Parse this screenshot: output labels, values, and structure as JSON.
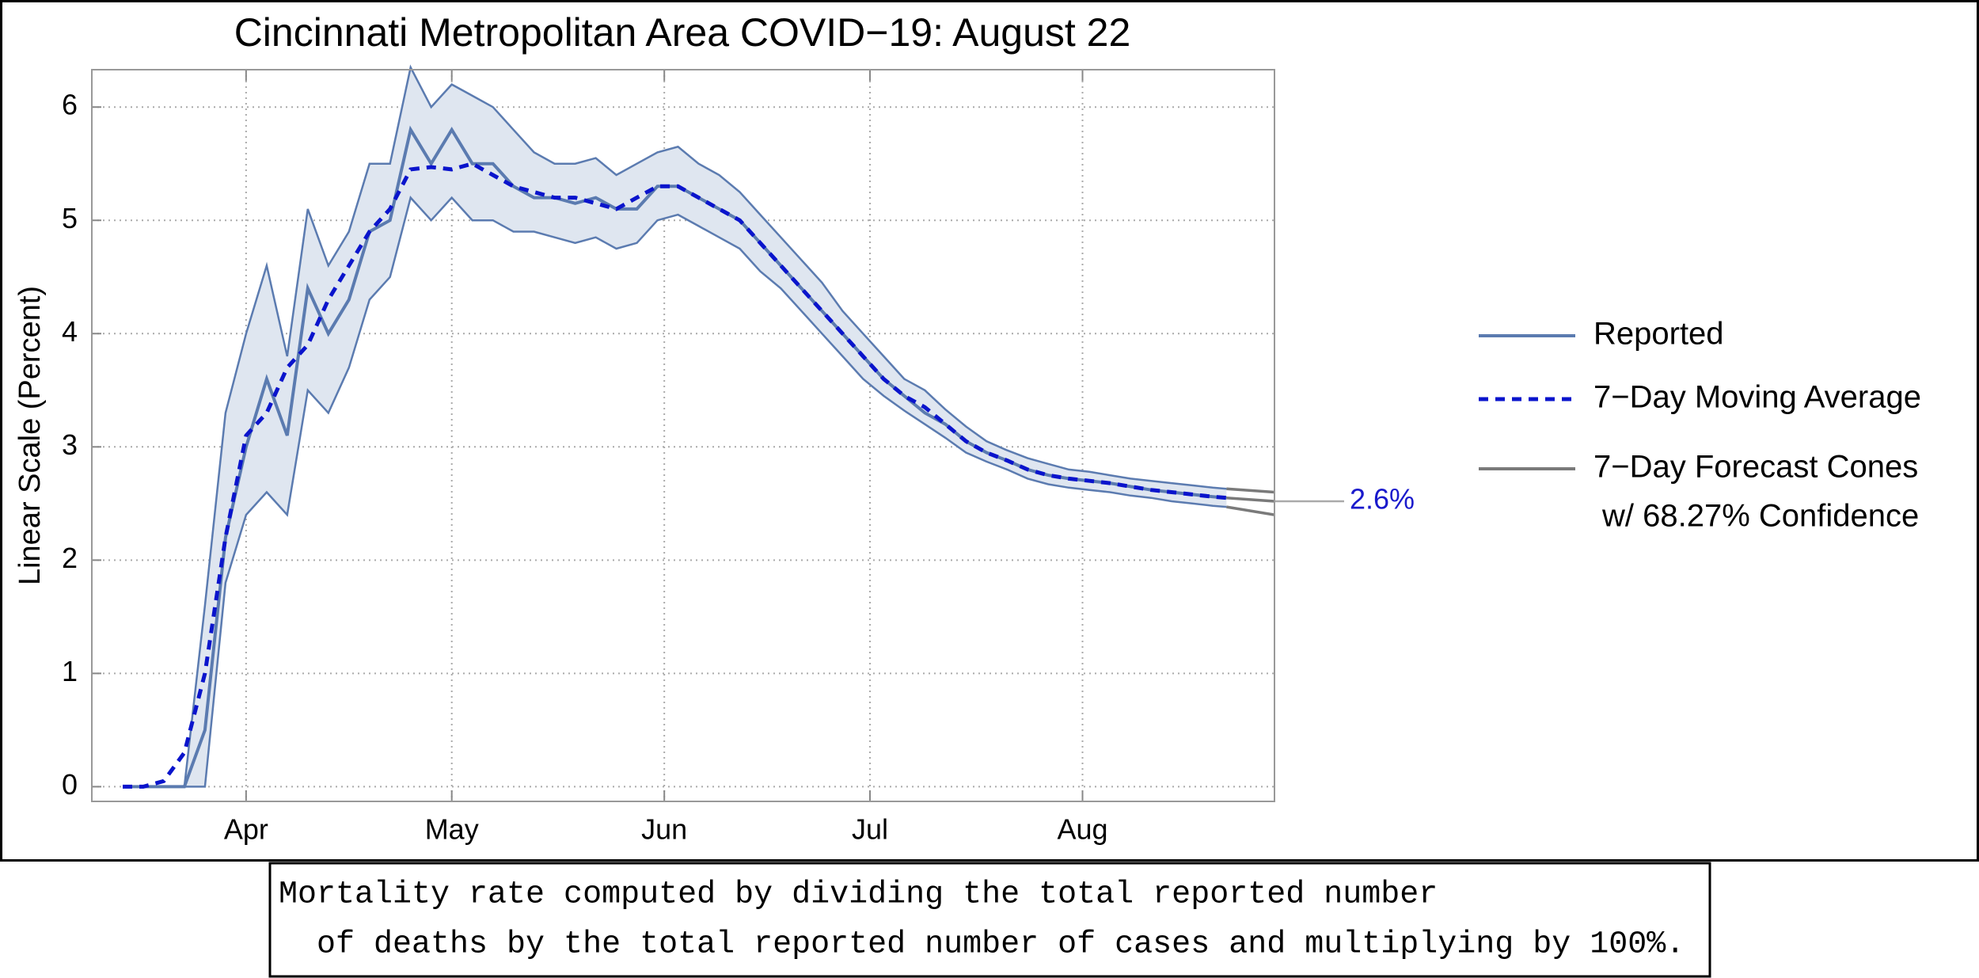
{
  "chart_data": {
    "type": "line",
    "title": "Cincinnati Metropolitan Area COVID−19: August 22",
    "y_label": "Linear Scale (Percent)",
    "x": [
      14,
      17,
      20,
      23,
      26,
      29,
      32,
      35,
      38,
      41,
      44,
      47,
      50,
      53,
      56,
      59,
      62,
      65,
      68,
      71,
      74,
      77,
      80,
      83,
      86,
      89,
      92,
      95,
      98,
      101,
      104,
      107,
      110,
      113,
      116,
      119,
      122,
      125,
      128,
      131,
      134,
      137,
      140,
      143,
      146,
      149,
      152,
      155,
      158,
      161,
      164,
      167,
      170,
      173,
      175
    ],
    "xlim": [
      9.5,
      182
    ],
    "xticks": [
      {
        "value": 32,
        "label": "Apr"
      },
      {
        "value": 62,
        "label": "May"
      },
      {
        "value": 93,
        "label": "Jun"
      },
      {
        "value": 123,
        "label": "Jul"
      },
      {
        "value": 154,
        "label": "Aug"
      }
    ],
    "ylim": [
      -0.13,
      6.33
    ],
    "yticks": [
      0,
      1,
      2,
      3,
      4,
      5,
      6
    ],
    "grid": true,
    "legend": "right",
    "series": [
      {
        "name": "Reported",
        "color": "#5b7bb0",
        "dash": false,
        "values": [
          0,
          0,
          0,
          0,
          0.5,
          2.2,
          3.0,
          3.6,
          3.1,
          4.4,
          4.0,
          4.3,
          4.9,
          5.0,
          5.8,
          5.5,
          5.8,
          5.5,
          5.5,
          5.3,
          5.2,
          5.2,
          5.15,
          5.2,
          5.1,
          5.1,
          5.3,
          5.3,
          5.2,
          5.1,
          5.0,
          4.8,
          4.6,
          4.4,
          4.2,
          4.0,
          3.8,
          3.6,
          3.45,
          3.3,
          3.2,
          3.05,
          2.95,
          2.88,
          2.8,
          2.75,
          2.72,
          2.7,
          2.68,
          2.65,
          2.62,
          2.6,
          2.58,
          2.56,
          2.55
        ]
      },
      {
        "name": "7−Day Moving Average",
        "color": "#0a14cc",
        "dash": true,
        "values": [
          0,
          0,
          0.05,
          0.3,
          1.0,
          2.2,
          3.1,
          3.3,
          3.7,
          3.9,
          4.3,
          4.6,
          4.9,
          5.1,
          5.45,
          5.47,
          5.45,
          5.5,
          5.4,
          5.3,
          5.25,
          5.2,
          5.2,
          5.15,
          5.1,
          5.2,
          5.3,
          5.3,
          5.2,
          5.1,
          5.0,
          4.8,
          4.6,
          4.4,
          4.2,
          4.0,
          3.8,
          3.6,
          3.45,
          3.35,
          3.2,
          3.05,
          2.95,
          2.88,
          2.8,
          2.75,
          2.72,
          2.7,
          2.68,
          2.65,
          2.62,
          2.6,
          2.58,
          2.56,
          2.55
        ]
      }
    ],
    "band": {
      "color": "#dfe6f0",
      "lower": [
        0,
        0,
        0,
        0,
        0,
        1.8,
        2.4,
        2.6,
        2.4,
        3.5,
        3.3,
        3.7,
        4.3,
        4.5,
        5.2,
        5.0,
        5.2,
        5.0,
        5.0,
        4.9,
        4.9,
        4.85,
        4.8,
        4.85,
        4.75,
        4.8,
        5.0,
        5.05,
        4.95,
        4.85,
        4.75,
        4.55,
        4.4,
        4.2,
        4.0,
        3.8,
        3.6,
        3.45,
        3.32,
        3.2,
        3.08,
        2.95,
        2.87,
        2.8,
        2.72,
        2.67,
        2.64,
        2.62,
        2.6,
        2.57,
        2.55,
        2.52,
        2.5,
        2.48,
        2.47
      ],
      "upper": [
        0,
        0,
        0,
        0,
        1.6,
        3.3,
        4.0,
        4.6,
        3.8,
        5.1,
        4.6,
        4.9,
        5.5,
        5.5,
        6.35,
        6.0,
        6.2,
        6.1,
        6.0,
        5.8,
        5.6,
        5.5,
        5.5,
        5.55,
        5.4,
        5.5,
        5.6,
        5.65,
        5.5,
        5.4,
        5.25,
        5.05,
        4.85,
        4.65,
        4.45,
        4.2,
        4.0,
        3.8,
        3.6,
        3.5,
        3.33,
        3.18,
        3.05,
        2.97,
        2.9,
        2.85,
        2.8,
        2.78,
        2.75,
        2.72,
        2.7,
        2.68,
        2.66,
        2.64,
        2.63
      ]
    },
    "forecast": {
      "name": "7−Day Forecast Cones",
      "name_line2": "w/ 68.27% Confidence",
      "color": "#7a7a7a",
      "x": [
        175,
        182
      ],
      "upper": [
        2.63,
        2.6
      ],
      "center": [
        2.55,
        2.52
      ],
      "lower": [
        2.47,
        2.4
      ]
    },
    "annotation": "2.6%",
    "annotation_color": "#1a1acc"
  },
  "footnote": {
    "lines": [
      "Mortality rate computed by dividing the total reported number",
      "  of deaths by the total reported number of cases and multiplying by 100%."
    ]
  }
}
